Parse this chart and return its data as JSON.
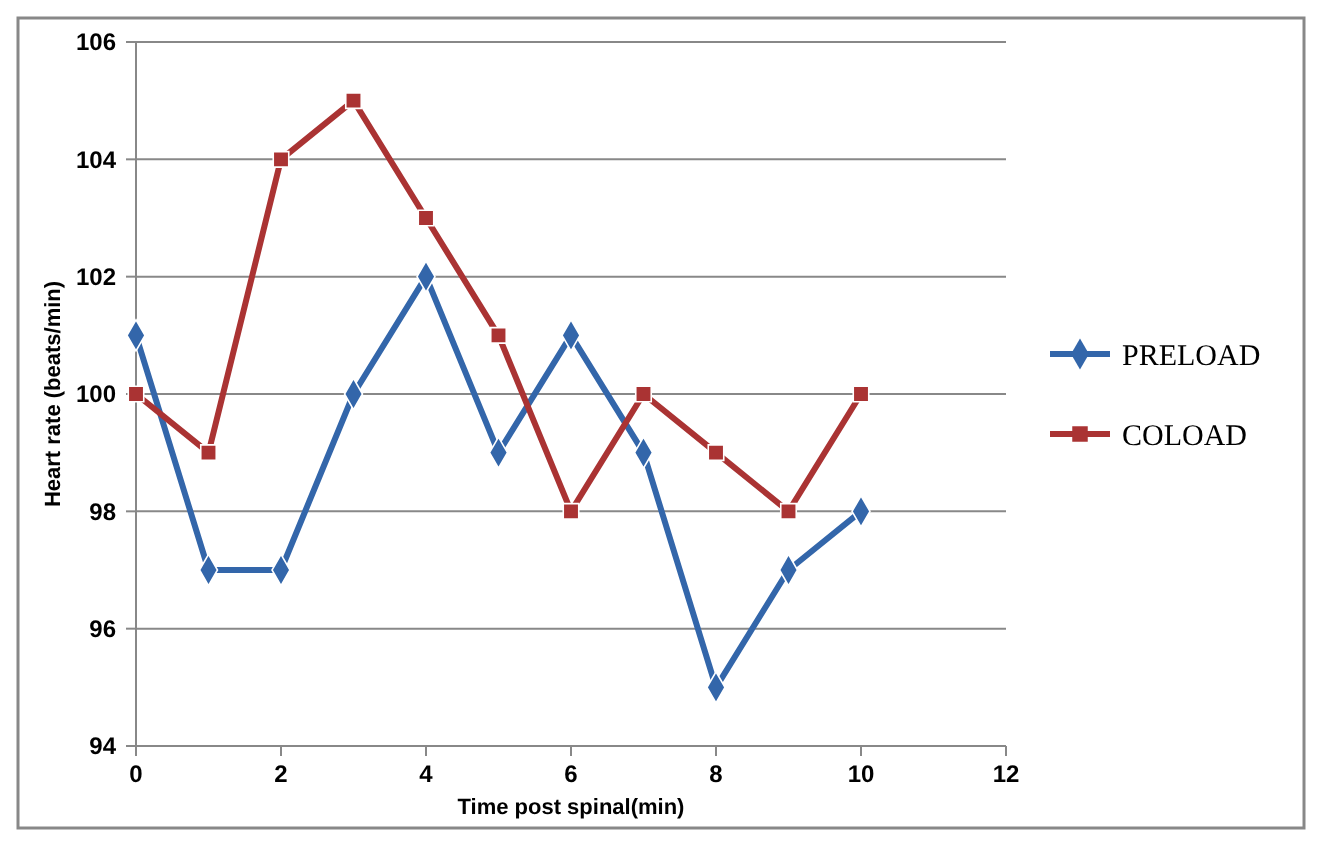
{
  "chart_data": {
    "type": "line",
    "xlabel": "Time post spinal(min)",
    "ylabel": "Heart rate (beats/min)",
    "x": [
      0,
      1,
      2,
      3,
      4,
      5,
      6,
      7,
      8,
      9,
      10
    ],
    "series": [
      {
        "name": "PRELOAD",
        "color": "#3366aa",
        "marker": "diamond",
        "values": [
          101,
          97,
          97,
          100,
          102,
          99,
          101,
          99,
          95,
          97,
          98
        ]
      },
      {
        "name": "COLOAD",
        "color": "#aa3333",
        "marker": "square",
        "values": [
          100,
          99,
          104,
          105,
          103,
          101,
          98,
          100,
          99,
          98,
          100
        ]
      }
    ],
    "xlim": [
      0,
      12
    ],
    "xticks": [
      0,
      2,
      4,
      6,
      8,
      10,
      12
    ],
    "ylim": [
      94,
      106
    ],
    "yticks": [
      94,
      96,
      98,
      100,
      102,
      104,
      106
    ],
    "grid": "y",
    "legend": "right"
  }
}
